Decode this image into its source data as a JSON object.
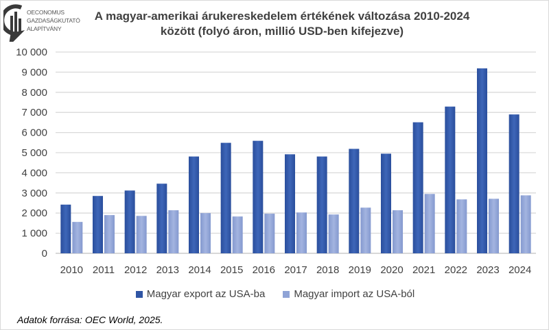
{
  "logo": {
    "lines": [
      "OECONOMUS",
      "GAZDASÁGKUTATÓ",
      "ALAPÍTVÁNY"
    ]
  },
  "chart_data": {
    "type": "bar",
    "title": "A magyar-amerikai árukereskedelem értékének változása 2010-2024 között (folyó áron, millió USD-ben kifejezve)",
    "title_lines": [
      "A magyar-amerikai árukereskedelem értékének változása 2010-2024",
      "között (folyó áron, millió USD-ben kifejezve)"
    ],
    "categories": [
      "2010",
      "2011",
      "2012",
      "2013",
      "2014",
      "2015",
      "2016",
      "2017",
      "2018",
      "2019",
      "2020",
      "2021",
      "2022",
      "2023",
      "2024"
    ],
    "series": [
      {
        "name": "Magyar export az USA-ba",
        "color": "#2f55a4",
        "values": [
          2420,
          2850,
          3120,
          3460,
          4810,
          5490,
          5590,
          4920,
          4810,
          5190,
          4950,
          6510,
          7290,
          9190,
          6900
        ]
      },
      {
        "name": "Magyar import az USA-ból",
        "color": "#8fa3d6",
        "values": [
          1560,
          1900,
          1860,
          2140,
          2000,
          1830,
          1970,
          2030,
          1930,
          2270,
          2140,
          2950,
          2680,
          2710,
          2880
        ]
      }
    ],
    "ylim": [
      0,
      10000
    ],
    "yticks": [
      "0",
      "1 000",
      "2 000",
      "3 000",
      "4 000",
      "5 000",
      "6 000",
      "7 000",
      "8 000",
      "9 000",
      "10 000"
    ],
    "grid": true,
    "legend": "bottom",
    "xlabel": "",
    "ylabel": ""
  },
  "source": "Adatok forrása: OEC World, 2025."
}
